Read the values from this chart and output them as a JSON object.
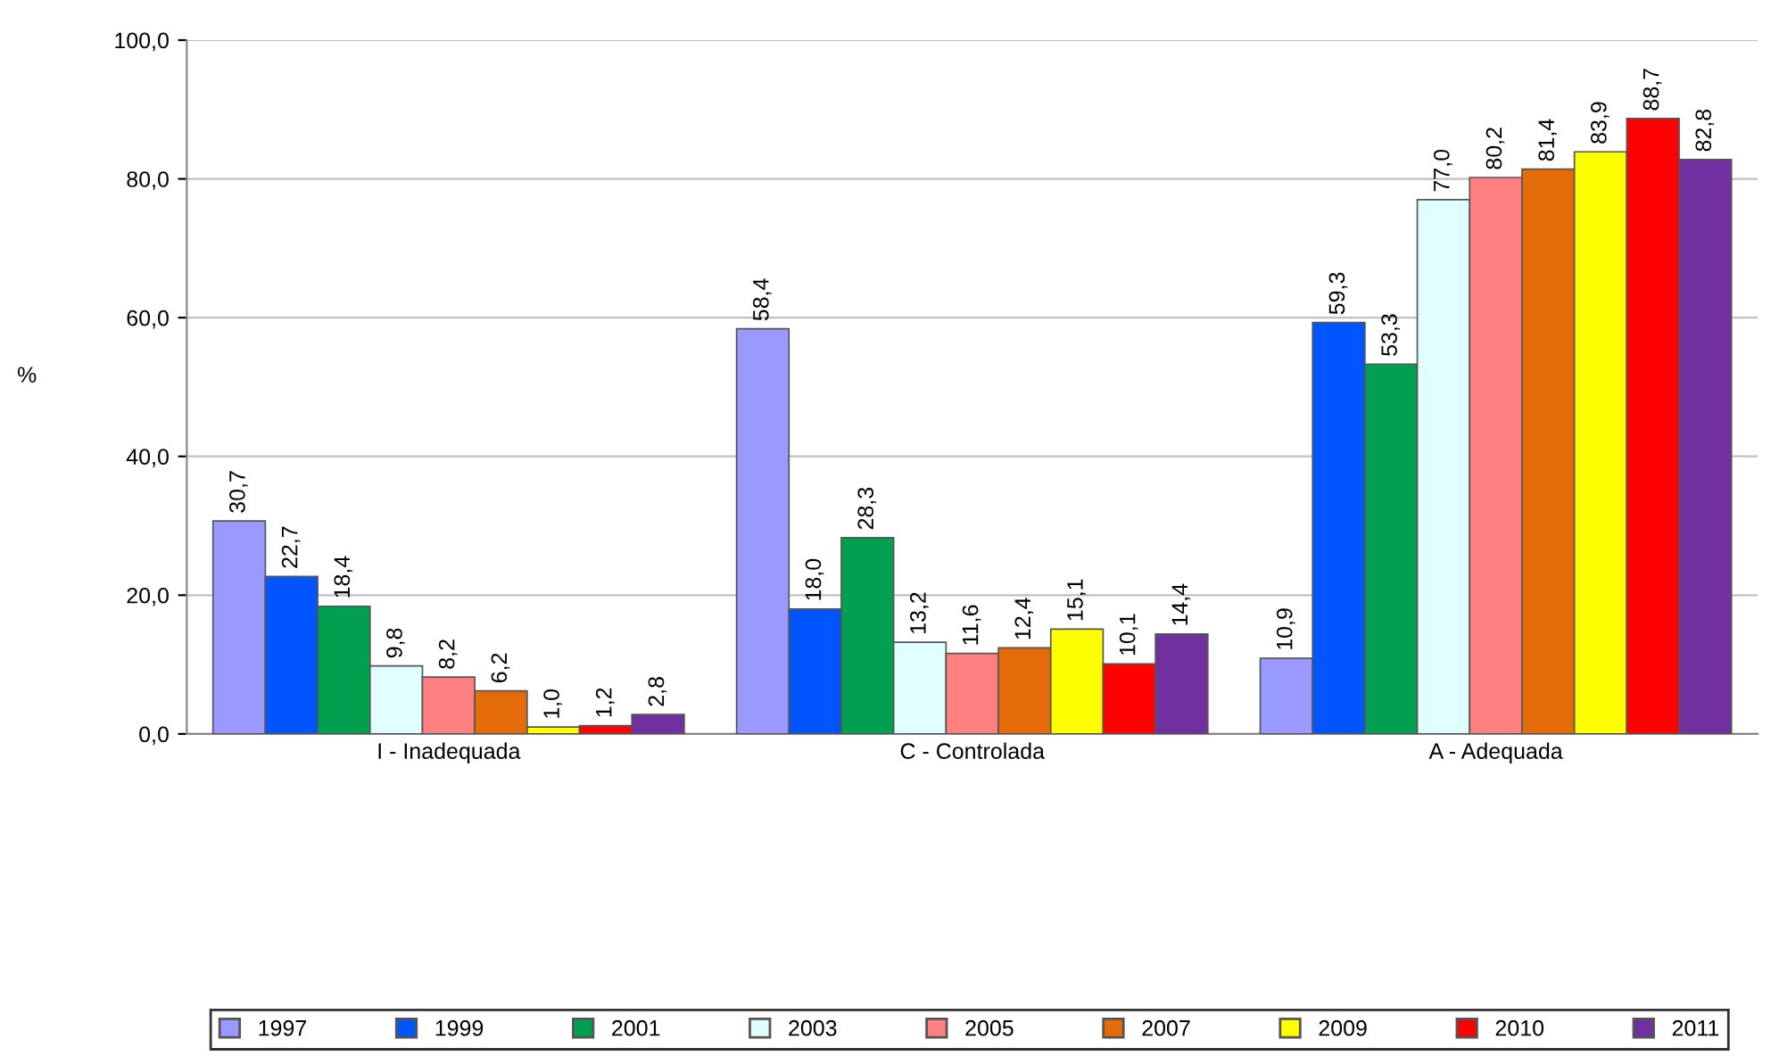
{
  "chart_data": {
    "type": "bar",
    "ylabel": "%",
    "categories": [
      "I - Inadequada",
      "C - Controlada",
      "A - Adequada"
    ],
    "ylim": [
      0,
      100
    ],
    "yticks": [
      {
        "value": 0,
        "label": "0,0"
      },
      {
        "value": 20,
        "label": "20,0"
      },
      {
        "value": 40,
        "label": "40,0"
      },
      {
        "value": 60,
        "label": "60,0"
      },
      {
        "value": 80,
        "label": "80,0"
      },
      {
        "value": 100,
        "label": "100,0"
      }
    ],
    "grid": "y",
    "legend": "bottom",
    "series": [
      {
        "name": "1997",
        "color": "#9999ff",
        "values": [
          30.7,
          58.4,
          10.9
        ],
        "value_labels": [
          "30,7",
          "58,4",
          "10,9"
        ]
      },
      {
        "name": "1999",
        "color": "#0055ff",
        "values": [
          22.7,
          18.0,
          59.3
        ],
        "value_labels": [
          "22,7",
          "18,0",
          "59,3"
        ]
      },
      {
        "name": "2001",
        "color": "#00a050",
        "values": [
          18.4,
          28.3,
          53.3
        ],
        "value_labels": [
          "18,4",
          "28,3",
          "53,3"
        ]
      },
      {
        "name": "2003",
        "color": "#e0ffff",
        "values": [
          9.8,
          13.2,
          77.0
        ],
        "value_labels": [
          "9,8",
          "13,2",
          "77,0"
        ]
      },
      {
        "name": "2005",
        "color": "#ff8080",
        "values": [
          8.2,
          11.6,
          80.2
        ],
        "value_labels": [
          "8,2",
          "11,6",
          "80,2"
        ]
      },
      {
        "name": "2007",
        "color": "#e46c0a",
        "values": [
          6.2,
          12.4,
          81.4
        ],
        "value_labels": [
          "6,2",
          "12,4",
          "81,4"
        ]
      },
      {
        "name": "2009",
        "color": "#ffff00",
        "values": [
          1.0,
          15.1,
          83.9
        ],
        "value_labels": [
          "1,0",
          "15,1",
          "83,9"
        ]
      },
      {
        "name": "2010",
        "color": "#ff0000",
        "values": [
          1.2,
          10.1,
          88.7
        ],
        "value_labels": [
          "1,2",
          "10,1",
          "88,7"
        ]
      },
      {
        "name": "2011",
        "color": "#7030a0",
        "values": [
          2.8,
          14.4,
          82.8
        ],
        "value_labels": [
          "2,8",
          "14,4",
          "82,8"
        ]
      }
    ]
  }
}
